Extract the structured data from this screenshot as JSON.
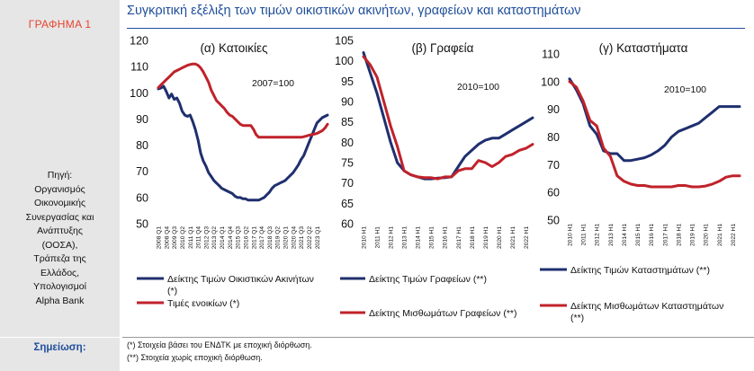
{
  "figure_label": "ΓΡΑΦΗΜΑ 1",
  "title": "Συγκριτική εξέλιξη των τιμών οικιστικών ακινήτων, γραφείων και καταστημάτων",
  "source_lines": [
    "Πηγή:",
    "Οργανισμός",
    "Οικονομικής",
    "Συνεργασίας και",
    "Ανάπτυξης",
    "(ΟΟΣΑ),",
    "Τράπεζα της",
    "Ελλάδος,",
    "Υπολογισμοί",
    "Alpha Bank"
  ],
  "note_label": "Σημείωση:",
  "footnotes": [
    "(*) Στοιχεία βάσει του ΕΝΔΤΚ με εποχική διόρθωση.",
    "(**) Στοιχεία χωρίς εποχική διόρθωση."
  ],
  "colors": {
    "blue": "#1f2f6e",
    "red": "#c0222a",
    "accent": "#1f4e9a",
    "label_red": "#e8432f"
  },
  "chart_data": [
    {
      "type": "line",
      "panel_title": "(α) Κατοικίες",
      "base_note": "2007=100",
      "ylim": [
        50,
        120
      ],
      "yticks": [
        50,
        60,
        70,
        80,
        90,
        100,
        110,
        120
      ],
      "xticks": [
        "2008 Q1",
        "2008 Q4",
        "2009 Q3",
        "2010 Q2",
        "2011 Q1",
        "2011 Q4",
        "2012 Q3",
        "2013 Q2",
        "2014 Q1",
        "2014 Q4",
        "2015 Q3",
        "2016 Q2",
        "2017 Q1",
        "2017 Q4",
        "2018 Q3",
        "2019 Q2",
        "2020 Q1",
        "2020 Q4",
        "2021 Q3",
        "2022 Q2",
        "2023 Q1"
      ],
      "x_count": 65,
      "series": [
        {
          "name": "Δείκτης Τιμών Οικιστικών Ακινήτων (*)",
          "color": "#1f2f6e",
          "values": [
            101.5,
            101.8,
            102.5,
            100.5,
            98,
            99.5,
            97.5,
            98,
            96,
            93,
            91.5,
            91,
            91.5,
            89,
            86,
            82,
            77,
            74,
            72,
            69.5,
            68,
            66.5,
            65.5,
            64.5,
            63.5,
            63,
            62.5,
            62,
            61.5,
            60.5,
            60,
            60,
            59.5,
            59.5,
            59,
            59,
            59,
            59,
            59,
            59.5,
            60,
            61,
            62,
            63.5,
            64.5,
            65,
            65.5,
            66,
            66.5,
            67.5,
            68.5,
            69.5,
            71,
            72.5,
            74.5,
            76,
            78.5,
            81,
            83.5,
            86,
            88.5,
            89.5,
            90.5,
            91,
            91.5
          ]
        },
        {
          "name": "Τιμές ενοικίων (*)",
          "color": "#c0222a",
          "values": [
            102,
            103,
            104,
            105,
            106,
            107,
            108,
            108.5,
            109,
            109.5,
            110,
            110.5,
            110.8,
            111,
            111,
            110.5,
            109.5,
            108,
            106,
            104,
            101,
            99,
            97,
            96,
            95,
            94,
            92.5,
            91.5,
            91,
            90,
            89,
            88,
            87.5,
            87.5,
            87.5,
            87.5,
            86,
            84,
            83,
            83,
            83,
            83,
            83,
            83,
            83,
            83,
            83,
            83,
            83,
            83,
            83,
            83,
            83,
            83,
            83,
            83.2,
            83.5,
            83.8,
            84,
            84.2,
            84.5,
            85,
            85.5,
            86.5,
            88
          ]
        }
      ],
      "legend": [
        {
          "label": "Δείκτης Τιμών Οικιστικών Ακινήτων",
          "label2": "(*)",
          "color": "#1f2f6e"
        },
        {
          "label": "Τιμές ενοικίων (*)",
          "label2": "",
          "color": "#c0222a"
        }
      ]
    },
    {
      "type": "line",
      "panel_title": "(β) Γραφεία",
      "base_note": "2010=100",
      "ylim": [
        60,
        105
      ],
      "yticks": [
        60,
        65,
        70,
        75,
        80,
        85,
        90,
        95,
        100,
        105
      ],
      "xticks": [
        "2010 H1",
        "2011 H1",
        "2012 H1",
        "2013 H1",
        "2014 H1",
        "2015 H1",
        "2016 H1",
        "2017 H1",
        "2018 H1",
        "2019 H1",
        "2020 H1",
        "2021 H1",
        "2022 H1"
      ],
      "x_count": 26,
      "series": [
        {
          "name": "Δείκτης Τιμών Γραφείων (**)",
          "color": "#1f2f6e",
          "values": [
            102,
            97,
            92,
            86,
            80,
            75,
            73,
            72,
            71.5,
            71,
            71,
            71.2,
            71.3,
            71.5,
            74,
            76.5,
            78,
            79.5,
            80.5,
            81,
            81,
            82,
            83,
            84,
            85,
            86
          ]
        },
        {
          "name": "Δείκτης Μισθωμάτων Γραφείων (**)",
          "color": "#c0222a",
          "values": [
            101,
            99,
            96,
            90,
            84,
            79,
            73,
            72,
            71.5,
            71.3,
            71.3,
            71,
            71.5,
            71.5,
            73,
            73.5,
            73.5,
            75.5,
            75,
            74,
            75,
            76.5,
            77,
            78,
            78.5,
            79.5
          ]
        }
      ],
      "legend": [
        {
          "label": "Δείκτης Τιμών Γραφείων (**)",
          "label2": "",
          "color": "#1f2f6e"
        },
        {
          "label": "Δείκτης Μισθωμάτων Γραφείων (**)",
          "label2": "",
          "color": "#c0222a"
        }
      ]
    },
    {
      "type": "line",
      "panel_title": "(γ) Καταστήματα",
      "base_note": "2010=100",
      "ylim": [
        50,
        110
      ],
      "yticks": [
        50,
        60,
        70,
        80,
        90,
        100,
        110
      ],
      "xticks": [
        "2010 H1",
        "2011 H1",
        "2012 H1",
        "2013 H1",
        "2014 H1",
        "2015 H1",
        "2016 H1",
        "2017 H1",
        "2018 H1",
        "2019 H1",
        "2020 H1",
        "2021 H1",
        "2022 H1"
      ],
      "x_count": 26,
      "series": [
        {
          "name": "Δείκτης Τιμών Καταστημάτων (**)",
          "color": "#1f2f6e",
          "values": [
            101,
            97,
            92,
            84,
            81,
            75,
            74,
            74,
            71.5,
            71.5,
            72,
            72.5,
            73.5,
            75,
            77,
            80,
            82,
            83,
            84,
            85,
            87,
            89,
            91,
            91,
            91,
            91
          ]
        },
        {
          "name": "Δείκτης Μισθωμάτων Καταστημάτων (**)",
          "color": "#c0222a",
          "values": [
            100,
            98,
            93,
            86,
            84,
            76,
            73,
            66,
            64,
            63,
            62.5,
            62.5,
            62,
            62,
            62,
            62,
            62.5,
            62.5,
            62,
            62,
            62.3,
            63,
            64,
            65.5,
            66,
            66
          ]
        }
      ],
      "legend": [
        {
          "label": "Δείκτης Τιμών Καταστημάτων (**)",
          "label2": "",
          "color": "#1f2f6e"
        },
        {
          "label": "Δείκτης Μισθωμάτων Καταστημάτων",
          "label2": "(**)",
          "color": "#c0222a"
        }
      ]
    }
  ]
}
